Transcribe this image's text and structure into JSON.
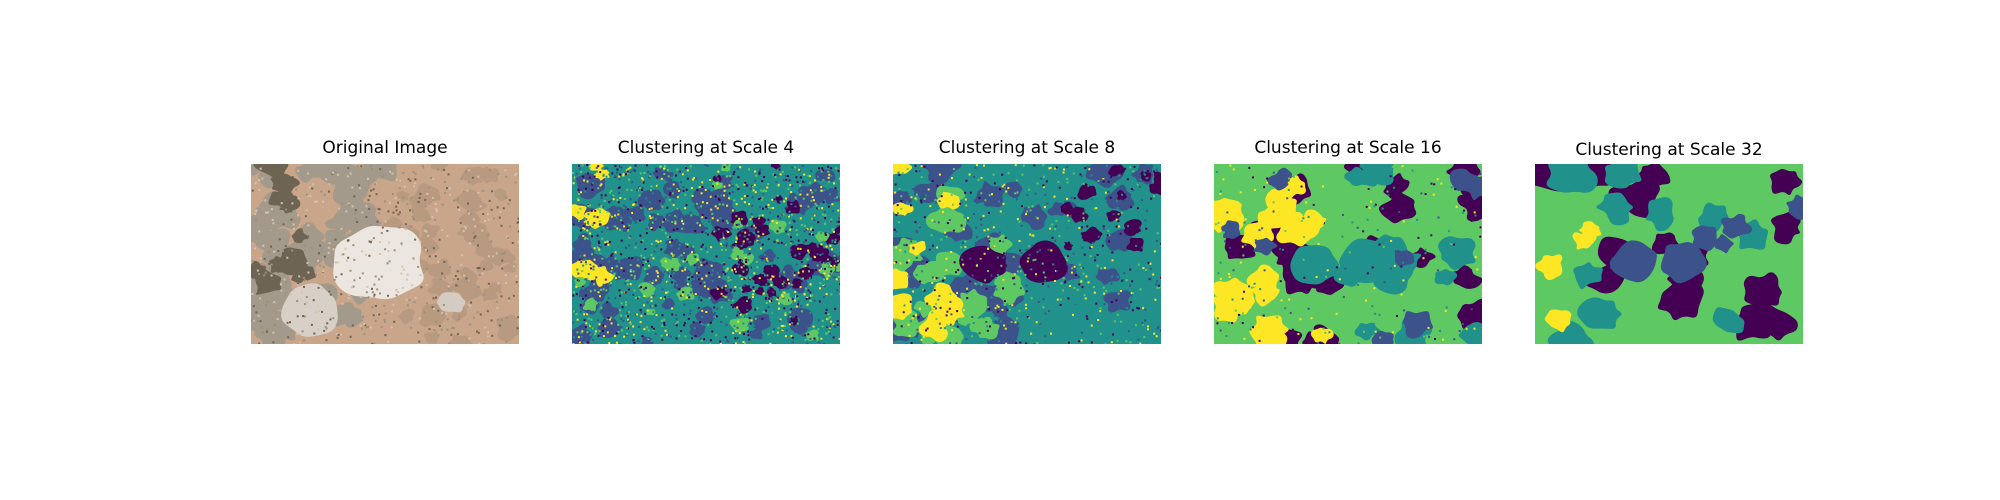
{
  "figure": {
    "panels": [
      {
        "title": "Original Image",
        "kind": "photo"
      },
      {
        "title": "Clustering at Scale 4",
        "kind": "clusters",
        "scale": 4
      },
      {
        "title": "Clustering at Scale 8",
        "kind": "clusters",
        "scale": 8
      },
      {
        "title": "Clustering at Scale 16",
        "kind": "clusters",
        "scale": 16
      },
      {
        "title": "Clustering at Scale 32",
        "kind": "clusters",
        "scale": 32
      }
    ],
    "palette": [
      "#440154",
      "#3b528b",
      "#21918c",
      "#5ec962",
      "#fde725"
    ],
    "photo_colors": {
      "ground": "#c9a58a",
      "shadow": "#6e6454",
      "tree_crown": "#ece6e0",
      "grey_patch": "#a49a8c"
    }
  }
}
